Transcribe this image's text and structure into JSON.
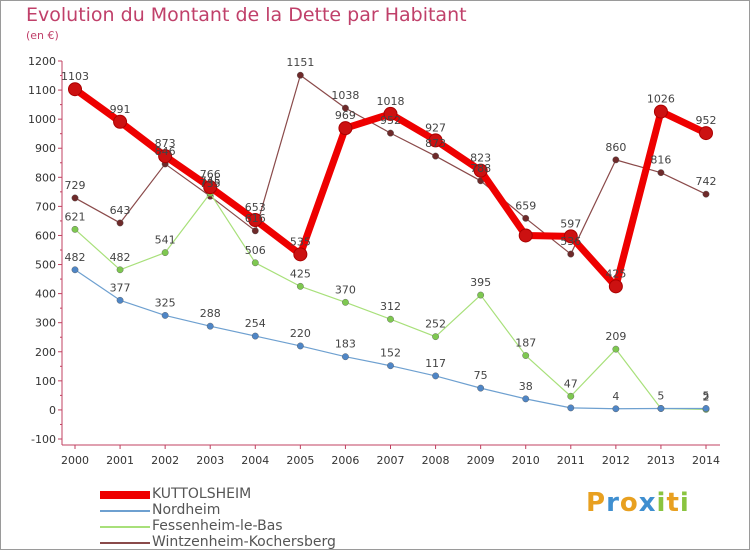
{
  "header": {
    "title": "Evolution du Montant de la Dette par Habitant",
    "unit": "(en €)"
  },
  "logo": {
    "text": "Proxiti",
    "letters": [
      {
        "ch": "P",
        "color": "#e8a020"
      },
      {
        "ch": "r",
        "color": "#3f8fd0"
      },
      {
        "ch": "o",
        "color": "#e8a020"
      },
      {
        "ch": "x",
        "color": "#3f8fd0"
      },
      {
        "ch": "i",
        "color": "#8ac43f"
      },
      {
        "ch": "t",
        "color": "#e8a020"
      },
      {
        "ch": "i",
        "color": "#8ac43f"
      }
    ]
  },
  "chart_data": {
    "type": "line",
    "title": "Evolution du Montant de la Dette par Habitant",
    "ylabel": "(en €)",
    "ylim": [
      -100,
      1200
    ],
    "yticks": [
      -100,
      0,
      100,
      200,
      300,
      400,
      500,
      600,
      700,
      800,
      900,
      1000,
      1100,
      1200
    ],
    "x": [
      "2000",
      "2001",
      "2002",
      "2003",
      "2004",
      "2005",
      "2006",
      "2007",
      "2008",
      "2009",
      "2010",
      "2011",
      "2012",
      "2013",
      "2014"
    ],
    "grid": false,
    "legend_position": "bottom",
    "series": [
      {
        "name": "KUTTOLSHEIM",
        "color": "#ee0000",
        "marker": "#cc1111",
        "width": 7,
        "values": [
          1103,
          991,
          873,
          766,
          653,
          535,
          969,
          1018,
          927,
          823,
          600,
          597,
          425,
          1026,
          952
        ],
        "labels": [
          "1103",
          "991",
          "873",
          "766",
          "653",
          "535",
          "969",
          "1018",
          "927",
          "823",
          "",
          "597",
          "425",
          "1026",
          "952"
        ]
      },
      {
        "name": "Nordheim",
        "color": "#6ea0d0",
        "marker": "#4f86c6",
        "width": 1.2,
        "values": [
          482,
          377,
          325,
          288,
          254,
          220,
          183,
          152,
          117,
          75,
          38,
          7,
          4,
          5,
          5
        ],
        "labels": [
          "482",
          "377",
          "325",
          "288",
          "254",
          "220",
          "183",
          "152",
          "117",
          "75",
          "38",
          "",
          "4",
          "5",
          "5"
        ]
      },
      {
        "name": "Fessenheim-le-Bas",
        "color": "#a8e07a",
        "marker": "#7ec850",
        "width": 1.2,
        "values": [
          621,
          482,
          541,
          745,
          506,
          425,
          370,
          312,
          252,
          395,
          187,
          47,
          209,
          5,
          2
        ],
        "labels": [
          "621",
          "482",
          "541",
          "745",
          "506",
          "425",
          "370",
          "312",
          "252",
          "395",
          "187",
          "47",
          "209",
          "",
          "2"
        ]
      },
      {
        "name": "Wintzenheim-Kochersberg",
        "color": "#8a4a4a",
        "marker": "#6e2a2a",
        "width": 1.2,
        "values": [
          729,
          643,
          846,
          735,
          616,
          1151,
          1038,
          952,
          873,
          788,
          659,
          536,
          860,
          816,
          742
        ],
        "labels": [
          "729",
          "643",
          "846",
          "735",
          "616",
          "1151",
          "1038",
          "952",
          "873",
          "788",
          "659",
          "536",
          "860",
          "816",
          "742"
        ]
      }
    ]
  }
}
